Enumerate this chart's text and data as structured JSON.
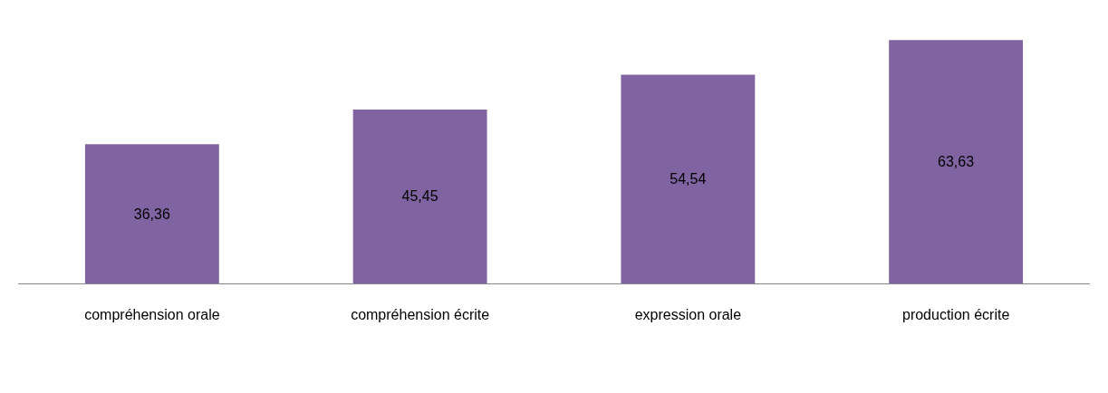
{
  "chart_data": {
    "type": "bar",
    "categories": [
      "compréhension orale",
      "compréhension écrite",
      "expression orale",
      "production écrite"
    ],
    "values": [
      36.36,
      45.45,
      54.54,
      63.63
    ],
    "color": "#8064a2",
    "value_labels": [
      "36,36",
      "45,45",
      "54,54",
      "63,63"
    ]
  }
}
